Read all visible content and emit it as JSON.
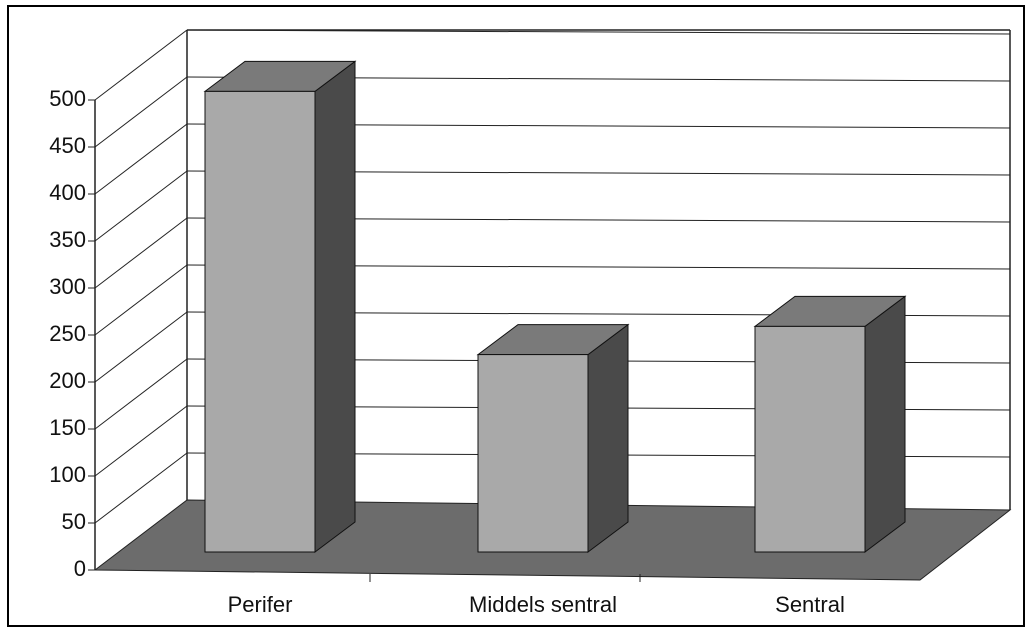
{
  "chart_data": {
    "type": "bar3d",
    "categories": [
      "Perifer",
      "Middels sentral",
      "Sentral"
    ],
    "values": [
      490,
      210,
      240
    ],
    "ylim": [
      0,
      500
    ],
    "yticks": [
      0,
      50,
      100,
      150,
      200,
      250,
      300,
      350,
      400,
      450,
      500
    ],
    "grid": true,
    "color": "#a9a9a9"
  }
}
